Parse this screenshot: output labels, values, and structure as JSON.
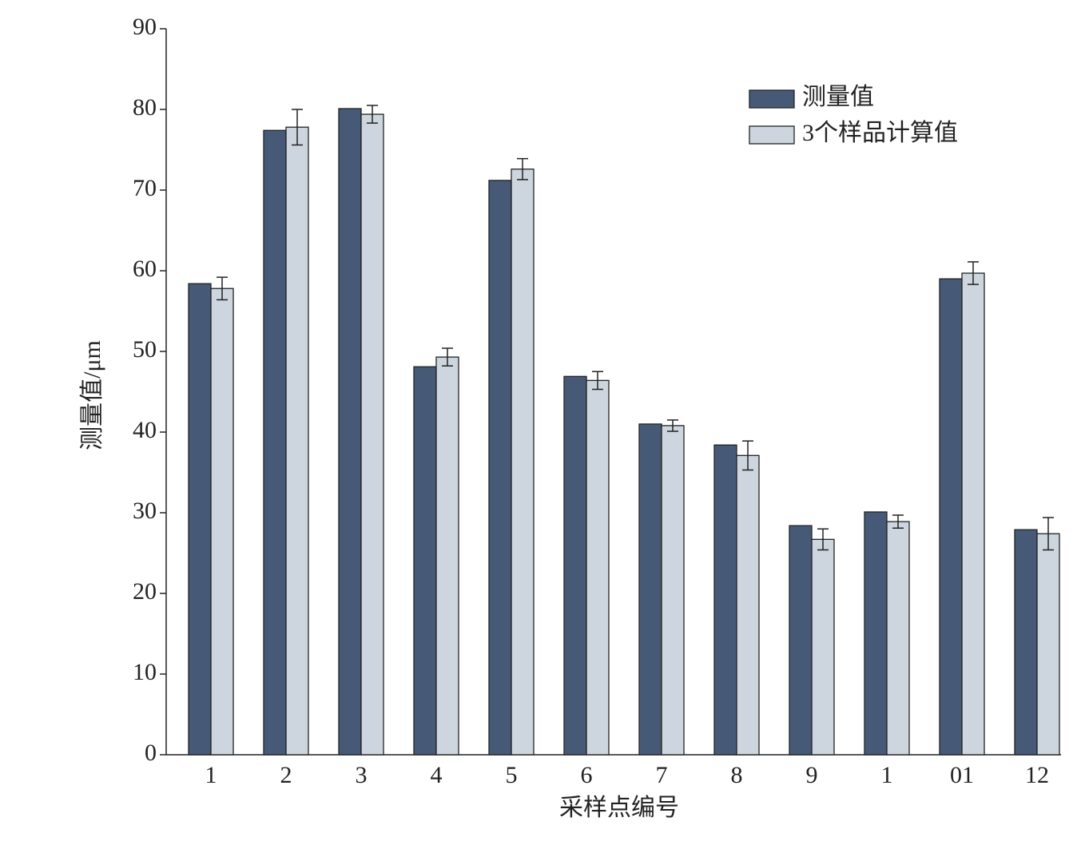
{
  "chart_data": {
    "type": "bar",
    "x_label": "采样点编号",
    "y_label": "测量值/μm",
    "categories": [
      "1",
      "2",
      "3",
      "4",
      "5",
      "6",
      "7",
      "8",
      "9",
      "1",
      "01",
      "12"
    ],
    "series": [
      {
        "name": "测量值",
        "color": "#465a78",
        "values": [
          58.4,
          77.4,
          80.1,
          48.1,
          71.2,
          46.9,
          41.0,
          38.4,
          28.4,
          30.1,
          59.0,
          27.9
        ]
      },
      {
        "name": "3个样品计算值",
        "color": "#cdd6de",
        "values": [
          57.8,
          77.8,
          79.4,
          49.3,
          72.6,
          46.4,
          40.8,
          37.1,
          26.7,
          28.9,
          59.7,
          27.4
        ],
        "errors": [
          1.4,
          2.2,
          1.1,
          1.1,
          1.3,
          1.1,
          0.7,
          1.8,
          1.3,
          0.8,
          1.4,
          2.0
        ]
      }
    ],
    "ylim": [
      0,
      90
    ],
    "yticks": [
      0,
      10,
      20,
      30,
      40,
      50,
      60,
      70,
      80,
      90
    ],
    "legend": "upper right"
  }
}
